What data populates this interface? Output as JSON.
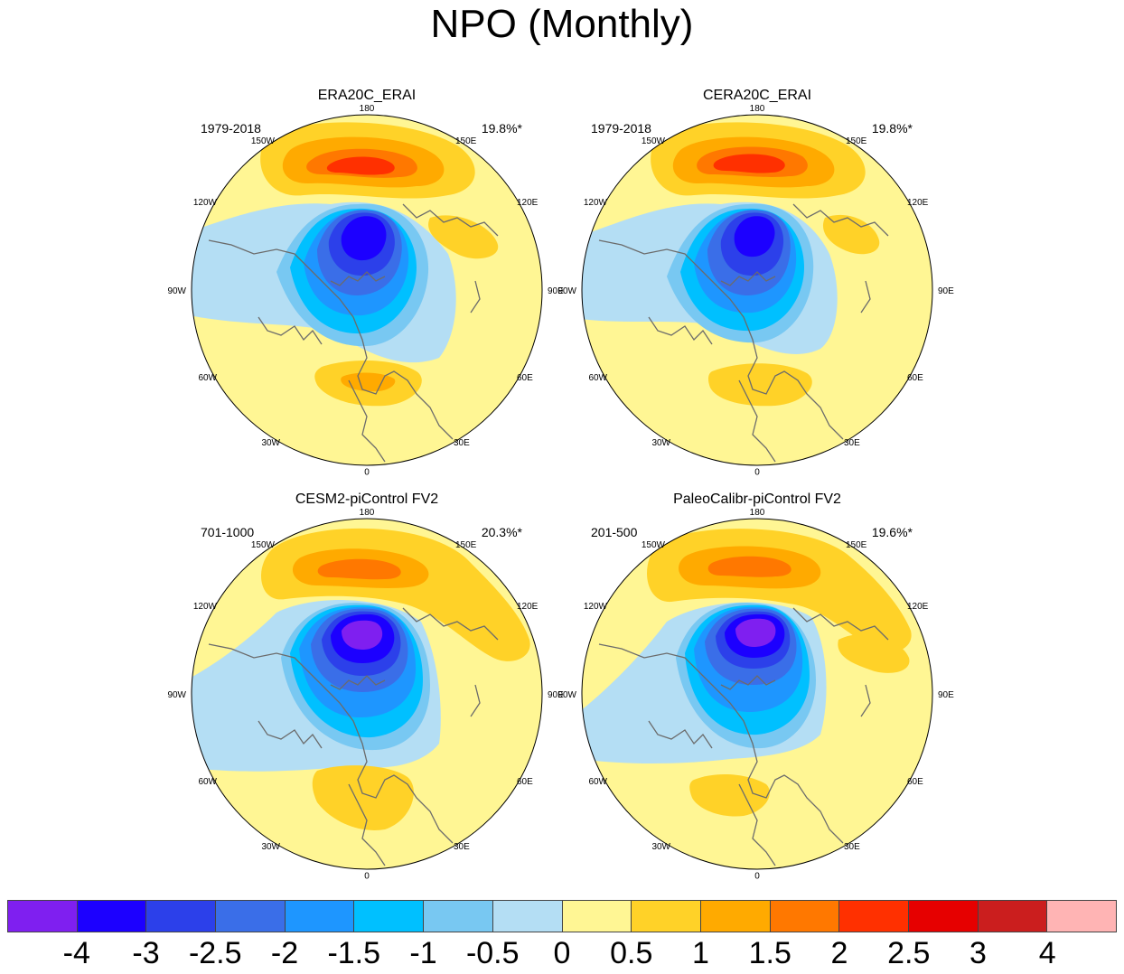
{
  "title": "NPO (Monthly)",
  "colors": {
    "palette": [
      "#7f1ff0",
      "#1c00ff",
      "#2c40ea",
      "#3a6ee8",
      "#1e96ff",
      "#00c0ff",
      "#78c8f2",
      "#b4def4",
      "#fff694",
      "#ffd228",
      "#ffaa00",
      "#ff7800",
      "#ff3000",
      "#e60000",
      "#cb1e1e",
      "#ffb4b4"
    ],
    "coast": "#6b6b6b"
  },
  "colorbar": {
    "labels": [
      "-4",
      "-3",
      "-2.5",
      "-2",
      "-1.5",
      "-1",
      "-0.5",
      "0",
      "0.5",
      "1",
      "1.5",
      "2",
      "2.5",
      "3",
      "4"
    ]
  },
  "panels": [
    {
      "title": "ERA20C_ERAI",
      "period": "1979-2018",
      "variance": "19.8%*"
    },
    {
      "title": "CERA20C_ERAI",
      "period": "1979-2018",
      "variance": "19.8%*"
    },
    {
      "title": "CESM2-piControl FV2",
      "period": "701-1000",
      "variance": "20.3%*"
    },
    {
      "title": "PaleoCalibr-piControl FV2",
      "period": "201-500",
      "variance": "19.6%*"
    }
  ],
  "lon_labels": {
    "top": "180",
    "bottom": "0",
    "left": "90W",
    "right": "90E",
    "ul1": "150W",
    "ul2": "120W",
    "ll1": "60W",
    "ll2": "30W",
    "ur1": "150E",
    "ur2": "120E",
    "lr1": "60E",
    "lr2": "30E"
  }
}
